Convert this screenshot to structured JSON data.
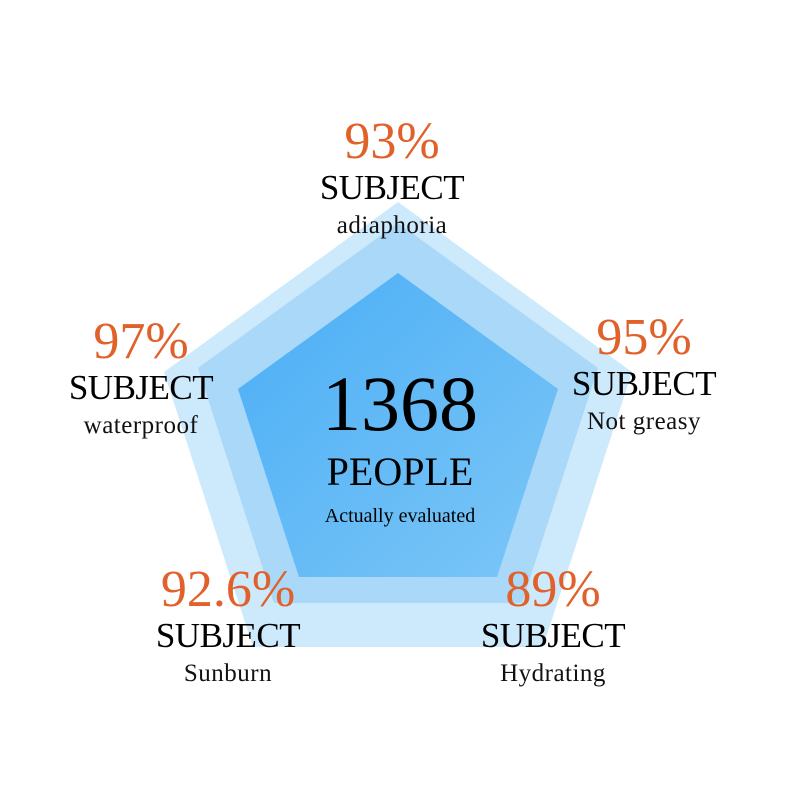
{
  "colors": {
    "accent": "#e0612a",
    "outer": "#cde9fc",
    "middle": "#a9d8f9",
    "inner": "#5ab7f6"
  },
  "center": {
    "count": "1368",
    "unit": "PEOPLE",
    "caption": "Actually evaluated"
  },
  "items": [
    {
      "percent": "93%",
      "label": "SUBJECT",
      "sub": "adiaphoria"
    },
    {
      "percent": "95%",
      "label": "SUBJECT",
      "sub": "Not greasy"
    },
    {
      "percent": "89%",
      "label": "SUBJECT",
      "sub": "Hydrating"
    },
    {
      "percent": "92.6%",
      "label": "SUBJECT",
      "sub": "Sunburn"
    },
    {
      "percent": "97%",
      "label": "SUBJECT",
      "sub": "waterproof"
    }
  ]
}
